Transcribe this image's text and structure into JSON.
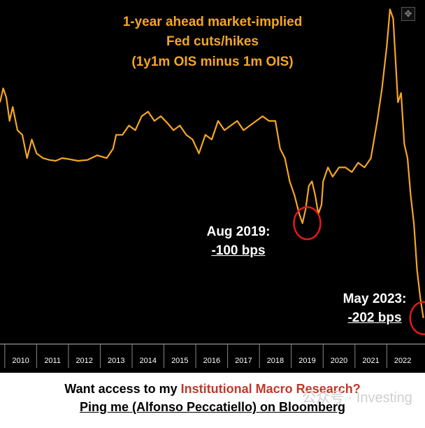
{
  "chart_data": {
    "type": "line",
    "title": [
      "1-year ahead market-implied",
      "Fed cuts/hikes",
      "(1y1m OIS minus 1m OIS)"
    ],
    "xlabel": "",
    "ylabel": "",
    "x_ticks": [
      "2010",
      "2011",
      "2012",
      "2013",
      "2014",
      "2015",
      "2016",
      "2017",
      "2018",
      "2019",
      "2020",
      "2021",
      "2022"
    ],
    "xlim": [
      2009.85,
      2023.2
    ],
    "ylim": [
      -230,
      140
    ],
    "series": [
      {
        "name": "",
        "x": [
          2009.85,
          2009.95,
          2010.05,
          2010.15,
          2010.25,
          2010.4,
          2010.55,
          2010.7,
          2010.85,
          2011.0,
          2011.2,
          2011.4,
          2011.6,
          2011.8,
          2012.0,
          2012.3,
          2012.6,
          2012.9,
          2013.2,
          2013.4,
          2013.5,
          2013.7,
          2013.9,
          2014.1,
          2014.3,
          2014.5,
          2014.7,
          2014.9,
          2015.1,
          2015.3,
          2015.5,
          2015.7,
          2015.9,
          2016.1,
          2016.3,
          2016.5,
          2016.7,
          2016.9,
          2017.1,
          2017.3,
          2017.5,
          2017.7,
          2017.9,
          2018.1,
          2018.3,
          2018.5,
          2018.65,
          2018.8,
          2018.95,
          2019.1,
          2019.25,
          2019.35,
          2019.45,
          2019.55,
          2019.65,
          2019.75,
          2019.85,
          2019.95,
          2020.0,
          2020.15,
          2020.3,
          2020.5,
          2020.7,
          2020.9,
          2021.1,
          2021.3,
          2021.5,
          2021.7,
          2021.85,
          2022.0,
          2022.1,
          2022.2,
          2022.3,
          2022.35,
          2022.45,
          2022.55,
          2022.65,
          2022.75,
          2022.85,
          2022.95,
          2023.05,
          2023.15
        ],
        "y": [
          30,
          45,
          35,
          10,
          25,
          0,
          -5,
          -30,
          -10,
          -25,
          -30,
          -32,
          -33,
          -30,
          -31,
          -33,
          -32,
          -27,
          -30,
          -20,
          -5,
          -5,
          5,
          0,
          15,
          20,
          10,
          15,
          8,
          0,
          5,
          -5,
          -10,
          -25,
          -5,
          -10,
          10,
          0,
          5,
          10,
          0,
          5,
          10,
          15,
          10,
          10,
          -20,
          -30,
          -55,
          -70,
          -90,
          -100,
          -85,
          -60,
          -55,
          -70,
          -90,
          -80,
          -55,
          -40,
          -50,
          -40,
          -40,
          -45,
          -35,
          -40,
          -30,
          10,
          45,
          90,
          130,
          120,
          60,
          30,
          40,
          -15,
          -30,
          -70,
          -100,
          -150,
          -180,
          -202
        ]
      }
    ],
    "annotations": [
      {
        "label": "Aug 2019:",
        "value": "-100 bps",
        "x": 2019.5,
        "y": -100
      },
      {
        "label": "May 2023:",
        "value": "-202 bps",
        "x": 2023.15,
        "y": -202
      }
    ],
    "grid": false,
    "colors": {
      "line": "#f5a623",
      "background": "#000000",
      "highlight_circle": "#e01b1b"
    }
  },
  "footer": {
    "line1_prefix": "Want access to my ",
    "line1_highlight": "Institutional Macro Research?",
    "line2": "Ping me (Alfonso Peccatiello) on Bloomberg"
  },
  "watermark": "公众号 · Investing",
  "toolbar": {
    "icon": "move-icon"
  }
}
